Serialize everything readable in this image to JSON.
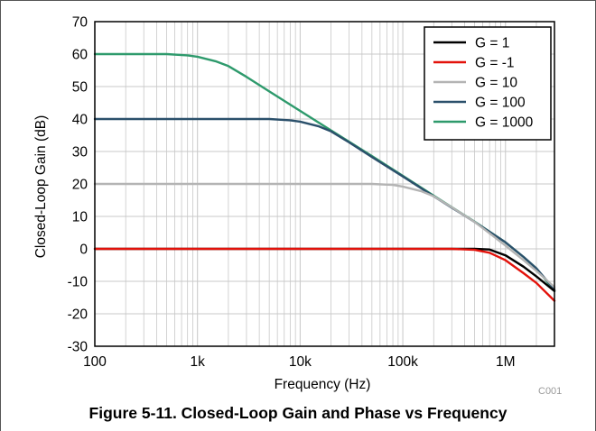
{
  "figure_code": "C001",
  "caption": "Figure 5-11. Closed-Loop Gain and Phase vs Frequency",
  "colors": {
    "g1": "#000000",
    "gm1": "#e3120b",
    "g10": "#b4b4b4",
    "g100": "#2b506b",
    "g1000": "#2e9a6c",
    "grid": "#c8c8c8"
  },
  "chart_data": {
    "type": "line",
    "title": "",
    "xlabel": "Frequency (Hz)",
    "ylabel": "Closed-Loop Gain (dB)",
    "x_scale": "log",
    "xlim": [
      100,
      3000000
    ],
    "ylim": [
      -30,
      70
    ],
    "x_ticks": [
      {
        "value": 100,
        "label": "100"
      },
      {
        "value": 1000,
        "label": "1k"
      },
      {
        "value": 10000,
        "label": "10k"
      },
      {
        "value": 100000,
        "label": "100k"
      },
      {
        "value": 1000000,
        "label": "1M"
      }
    ],
    "y_ticks": [
      70,
      60,
      50,
      40,
      30,
      20,
      10,
      0,
      -10,
      -20,
      -30
    ],
    "grid": true,
    "legend_position": "top-right",
    "series": [
      {
        "name": "G = 1",
        "color_key": "g1",
        "points": [
          [
            100,
            0
          ],
          [
            100000,
            0
          ],
          [
            300000,
            0
          ],
          [
            500000,
            0
          ],
          [
            700000,
            -0.2
          ],
          [
            1000000,
            -2
          ],
          [
            1500000,
            -5.5
          ],
          [
            2000000,
            -8.5
          ],
          [
            3000000,
            -13
          ]
        ]
      },
      {
        "name": "G = -1",
        "color_key": "gm1",
        "points": [
          [
            100,
            0
          ],
          [
            100000,
            0
          ],
          [
            300000,
            0
          ],
          [
            500000,
            -0.3
          ],
          [
            700000,
            -1.2
          ],
          [
            1000000,
            -3.5
          ],
          [
            1500000,
            -7.5
          ],
          [
            2000000,
            -10.5
          ],
          [
            3000000,
            -16
          ]
        ]
      },
      {
        "name": "G = 10",
        "color_key": "g10",
        "points": [
          [
            100,
            20
          ],
          [
            50000,
            20
          ],
          [
            80000,
            19.7
          ],
          [
            100000,
            19.2
          ],
          [
            150000,
            17.8
          ],
          [
            200000,
            16.2
          ],
          [
            300000,
            12.8
          ],
          [
            500000,
            8.3
          ],
          [
            700000,
            4.8
          ],
          [
            1000000,
            1
          ],
          [
            1500000,
            -3.5
          ],
          [
            2000000,
            -6.8
          ],
          [
            3000000,
            -11.8
          ]
        ]
      },
      {
        "name": "G = 100",
        "color_key": "g100",
        "points": [
          [
            100,
            40
          ],
          [
            5000,
            40
          ],
          [
            8000,
            39.6
          ],
          [
            10000,
            39.2
          ],
          [
            15000,
            37.8
          ],
          [
            20000,
            36.2
          ],
          [
            30000,
            32.8
          ],
          [
            50000,
            28.3
          ],
          [
            100000,
            22.3
          ],
          [
            200000,
            16.2
          ],
          [
            300000,
            12.7
          ],
          [
            500000,
            8.3
          ],
          [
            1000000,
            2
          ],
          [
            1500000,
            -2.5
          ],
          [
            2000000,
            -6
          ],
          [
            3000000,
            -12.5
          ]
        ]
      },
      {
        "name": "G = 1000",
        "color_key": "g1000",
        "points": [
          [
            100,
            60
          ],
          [
            500,
            60
          ],
          [
            800,
            59.6
          ],
          [
            1000,
            59.2
          ],
          [
            1500,
            57.8
          ],
          [
            2000,
            56.3
          ],
          [
            3000,
            53
          ],
          [
            5000,
            48.5
          ],
          [
            10000,
            42.5
          ],
          [
            20000,
            36.5
          ],
          [
            50000,
            28.6
          ],
          [
            100000,
            22.5
          ],
          [
            200000,
            16.4
          ],
          [
            500000,
            8.4
          ],
          [
            1000000,
            2
          ],
          [
            1500000,
            -2.5
          ],
          [
            2000000,
            -6
          ],
          [
            3000000,
            -13
          ]
        ]
      }
    ]
  }
}
